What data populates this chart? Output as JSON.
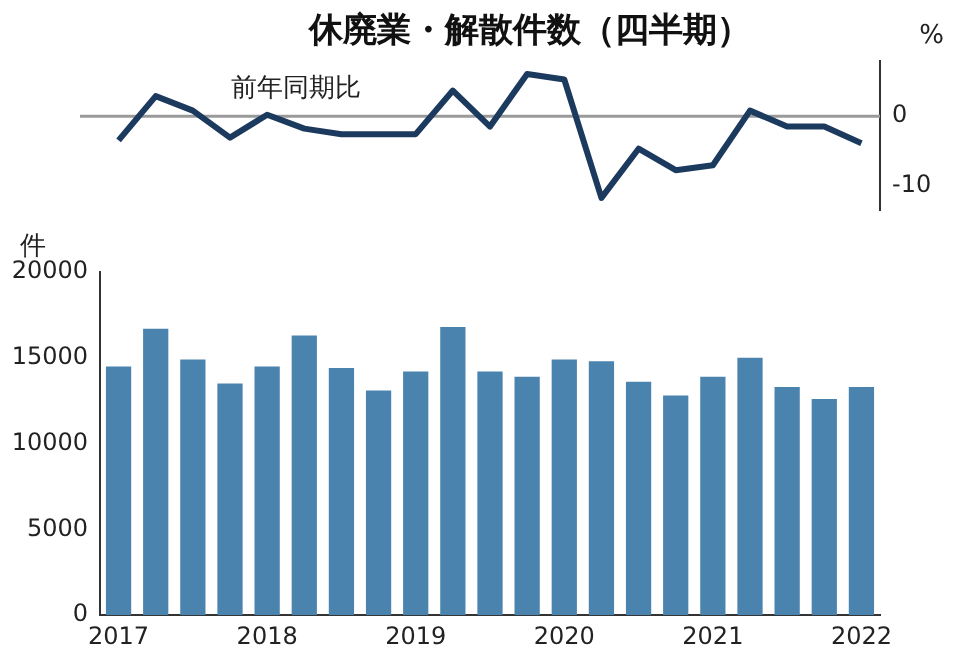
{
  "chart_data": [
    {
      "type": "line",
      "title": "休廃業・解散件数（四半期）",
      "ylabel": "%",
      "categories": [
        "2017",
        null,
        null,
        null,
        "2018",
        null,
        null,
        null,
        "2019",
        null,
        null,
        null,
        "2020",
        null,
        null,
        null,
        "2021",
        null,
        null,
        null,
        "2022"
      ],
      "series": [
        {
          "name": "前年同期比",
          "color": "#1c3a5e",
          "values": [
            -3.5,
            2.9,
            0.8,
            -3.1,
            0.2,
            -1.8,
            -2.6,
            -2.6,
            -2.6,
            3.7,
            -1.5,
            6.1,
            5.3,
            -11.8,
            -4.7,
            -7.8,
            -7.1,
            0.8,
            -1.5,
            -1.5,
            -3.9
          ]
        }
      ],
      "ylim": [
        -13.5,
        8
      ],
      "yticks": [
        -10,
        0
      ],
      "tick_labels": "y",
      "grid": false,
      "legend": false,
      "marker": "none",
      "line_style": "solid",
      "ref_lines": [
        {
          "axis": "y",
          "value": 0,
          "color": "#9a9a9a"
        }
      ]
    },
    {
      "type": "bar",
      "ylabel": "件",
      "categories": [
        "2017",
        null,
        null,
        null,
        "2018",
        null,
        null,
        null,
        "2019",
        null,
        null,
        null,
        "2020",
        null,
        null,
        null,
        "2021",
        null,
        null,
        null,
        "2022"
      ],
      "values": [
        14500,
        16700,
        14900,
        13500,
        14500,
        16300,
        14400,
        13100,
        14200,
        16800,
        14200,
        13900,
        14900,
        14800,
        13600,
        12800,
        13900,
        15000,
        13300,
        12600,
        13300
      ],
      "color": "#4a84ae",
      "ylim": [
        0,
        20000
      ],
      "yticks": [
        0,
        5000,
        10000,
        15000,
        20000
      ],
      "grid": false,
      "legend": false
    }
  ]
}
